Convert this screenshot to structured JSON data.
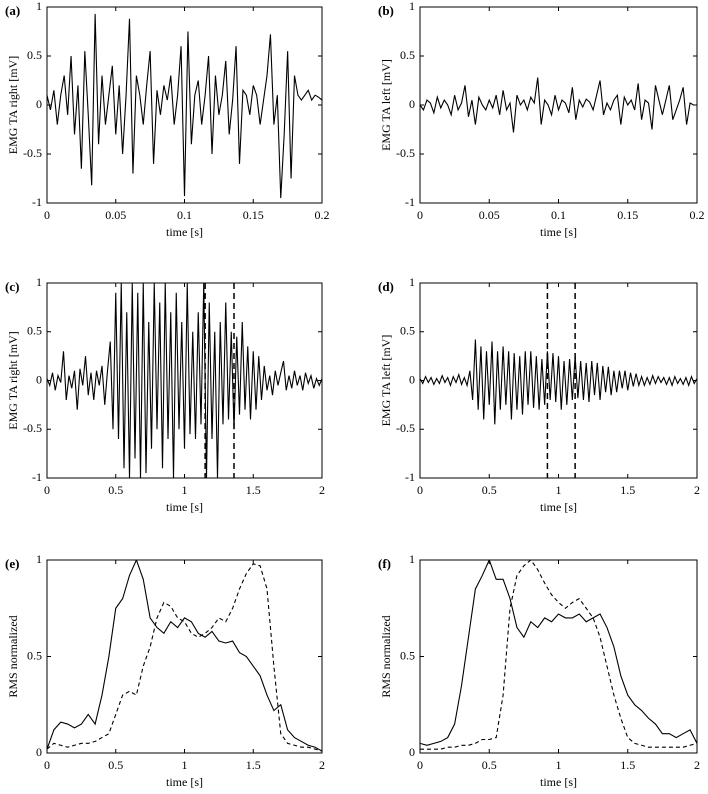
{
  "chart_data": [
    {
      "type": "line",
      "label": "(a)",
      "ylabel": "EMG TA right [mV]",
      "xlabel": "time [s]",
      "xlim": [
        0,
        0.2
      ],
      "xticks": [
        0,
        0.05,
        0.1,
        0.15,
        0.2
      ],
      "ylim": [
        -1,
        1
      ],
      "yticks": [
        -1,
        -0.5,
        0,
        0.5,
        1
      ],
      "x": [
        0,
        0.0025,
        0.005,
        0.0075,
        0.01,
        0.0125,
        0.015,
        0.0175,
        0.02,
        0.0225,
        0.025,
        0.0275,
        0.03,
        0.0325,
        0.035,
        0.0375,
        0.04,
        0.0425,
        0.045,
        0.0475,
        0.05,
        0.0525,
        0.055,
        0.0575,
        0.06,
        0.0625,
        0.065,
        0.0675,
        0.07,
        0.0725,
        0.075,
        0.0775,
        0.08,
        0.0825,
        0.085,
        0.0875,
        0.09,
        0.0925,
        0.095,
        0.0975,
        0.1,
        0.1025,
        0.105,
        0.1075,
        0.11,
        0.1125,
        0.115,
        0.1175,
        0.12,
        0.1225,
        0.125,
        0.1275,
        0.13,
        0.1325,
        0.135,
        0.1375,
        0.14,
        0.1425,
        0.145,
        0.1475,
        0.15,
        0.1525,
        0.155,
        0.1575,
        0.16,
        0.1625,
        0.165,
        0.1675,
        0.17,
        0.1725,
        0.175,
        0.1775,
        0.18,
        0.1825,
        0.185,
        0.1875,
        0.19,
        0.1925,
        0.195,
        0.1975,
        0.2
      ],
      "series": [
        {
          "color": "#000000",
          "dash": false,
          "values": [
            0.1,
            -0.05,
            0.15,
            -0.2,
            0.1,
            0.3,
            -0.1,
            0.5,
            -0.3,
            0.2,
            -0.65,
            0.55,
            -0.1,
            -0.82,
            0.93,
            -0.4,
            0.3,
            -0.2,
            0.1,
            0.4,
            -0.3,
            0.2,
            -0.5,
            0.1,
            0.88,
            -0.7,
            0.3,
            0.1,
            -0.2,
            0.2,
            0.55,
            -0.6,
            0.15,
            -0.1,
            0.2,
            0.05,
            0.3,
            -0.2,
            0.1,
            0.6,
            -0.93,
            0.75,
            -0.4,
            0.1,
            0.25,
            -0.2,
            0.1,
            0.5,
            -0.5,
            0.3,
            -0.1,
            0.1,
            0.45,
            -0.3,
            0.05,
            0.6,
            -0.6,
            0.15,
            0.1,
            -0.1,
            0.2,
            0.1,
            -0.2,
            0.05,
            0.3,
            0.72,
            -0.2,
            0.1,
            -0.95,
            -0.3,
            0.55,
            -0.75,
            0.3,
            0.1,
            0.05,
            0.1,
            0.15,
            0.05,
            0.1,
            0.08,
            0.05
          ]
        }
      ]
    },
    {
      "type": "line",
      "label": "(b)",
      "ylabel": "EMG TA left [mV]",
      "xlabel": "time [s]",
      "xlim": [
        0,
        0.2
      ],
      "xticks": [
        0,
        0.05,
        0.1,
        0.15,
        0.2
      ],
      "ylim": [
        -1,
        1
      ],
      "yticks": [
        -1,
        -0.5,
        0,
        0.5,
        1
      ],
      "x": [
        0,
        0.0025,
        0.005,
        0.0075,
        0.01,
        0.0125,
        0.015,
        0.0175,
        0.02,
        0.0225,
        0.025,
        0.0275,
        0.03,
        0.0325,
        0.035,
        0.0375,
        0.04,
        0.0425,
        0.045,
        0.0475,
        0.05,
        0.0525,
        0.055,
        0.0575,
        0.06,
        0.0625,
        0.065,
        0.0675,
        0.07,
        0.0725,
        0.075,
        0.0775,
        0.08,
        0.0825,
        0.085,
        0.0875,
        0.09,
        0.0925,
        0.095,
        0.0975,
        0.1,
        0.1025,
        0.105,
        0.1075,
        0.11,
        0.1125,
        0.115,
        0.1175,
        0.12,
        0.1225,
        0.125,
        0.1275,
        0.13,
        0.1325,
        0.135,
        0.1375,
        0.14,
        0.1425,
        0.145,
        0.1475,
        0.15,
        0.1525,
        0.155,
        0.1575,
        0.16,
        0.1625,
        0.165,
        0.1675,
        0.17,
        0.1725,
        0.175,
        0.1775,
        0.18,
        0.1825,
        0.185,
        0.1875,
        0.19,
        0.1925,
        0.195,
        0.1975,
        0.2
      ],
      "series": [
        {
          "color": "#000000",
          "dash": false,
          "values": [
            0,
            -0.05,
            0.05,
            0.02,
            -0.08,
            0.08,
            -0.03,
            0.05,
            0,
            -0.1,
            0.1,
            -0.05,
            0.02,
            0.2,
            -0.12,
            0.05,
            -0.2,
            0.08,
            0,
            -0.05,
            0.05,
            -0.03,
            0.1,
            -0.1,
            0.15,
            -0.05,
            0.02,
            -0.28,
            0.1,
            0,
            0.05,
            -0.05,
            0.08,
            0.02,
            0.28,
            -0.2,
            0.05,
            0,
            -0.1,
            0.1,
            -0.05,
            0.05,
            0.02,
            -0.08,
            0.18,
            -0.15,
            0.05,
            -0.02,
            0.06,
            0.03,
            -0.05,
            0.1,
            0.25,
            -0.1,
            0.02,
            -0.05,
            0.05,
            0.1,
            -0.2,
            0.08,
            0,
            0.05,
            -0.05,
            0.22,
            -0.15,
            0.05,
            0.02,
            -0.25,
            0.2,
            0.05,
            -0.1,
            0.05,
            0.2,
            -0.15,
            -0.05,
            0.05,
            0.18,
            -0.2,
            0.02,
            0,
            0
          ]
        }
      ]
    },
    {
      "type": "line",
      "label": "(c)",
      "ylabel": "EMG TA right [mV]",
      "xlabel": "time [s]",
      "xlim": [
        0,
        2
      ],
      "xticks": [
        0,
        0.5,
        1,
        1.5,
        2
      ],
      "ylim": [
        -1,
        1
      ],
      "yticks": [
        -1,
        -0.5,
        0,
        0.5,
        1
      ],
      "vlines": [
        1.15,
        1.36
      ],
      "x": [
        0,
        0.02,
        0.04,
        0.06,
        0.08,
        0.1,
        0.12,
        0.14,
        0.16,
        0.18,
        0.2,
        0.22,
        0.24,
        0.26,
        0.28,
        0.3,
        0.32,
        0.34,
        0.36,
        0.38,
        0.4,
        0.42,
        0.44,
        0.46,
        0.48,
        0.5,
        0.52,
        0.54,
        0.56,
        0.58,
        0.6,
        0.62,
        0.64,
        0.66,
        0.68,
        0.7,
        0.72,
        0.74,
        0.76,
        0.78,
        0.8,
        0.82,
        0.84,
        0.86,
        0.88,
        0.9,
        0.92,
        0.94,
        0.96,
        0.98,
        1,
        1.02,
        1.04,
        1.06,
        1.08,
        1.1,
        1.12,
        1.14,
        1.16,
        1.18,
        1.2,
        1.22,
        1.24,
        1.26,
        1.28,
        1.3,
        1.32,
        1.34,
        1.36,
        1.38,
        1.4,
        1.42,
        1.44,
        1.46,
        1.48,
        1.5,
        1.52,
        1.54,
        1.56,
        1.58,
        1.6,
        1.62,
        1.64,
        1.66,
        1.68,
        1.7,
        1.72,
        1.74,
        1.76,
        1.78,
        1.8,
        1.82,
        1.84,
        1.86,
        1.88,
        1.9,
        1.92,
        1.94,
        1.96,
        1.98,
        2
      ],
      "series": [
        {
          "color": "#000000",
          "dash": false,
          "values": [
            0.02,
            -0.05,
            0.08,
            -0.1,
            0.05,
            -0.02,
            0.3,
            -0.2,
            0.05,
            -0.08,
            0.1,
            -0.3,
            0.12,
            -0.05,
            0.25,
            -0.15,
            0.08,
            -0.2,
            0.1,
            -0.05,
            0.15,
            -0.25,
            0.1,
            0.4,
            -0.5,
            0.9,
            -0.6,
            1,
            -0.9,
            0.7,
            -1,
            1,
            -0.8,
            0.9,
            -1,
            1,
            -0.95,
            0.6,
            -0.7,
            1,
            -0.5,
            0.8,
            -0.9,
            1,
            -0.6,
            0.7,
            -1,
            0.9,
            -0.5,
            0.6,
            -0.7,
            1,
            -0.55,
            0.5,
            -0.6,
            0.7,
            -0.45,
            1,
            -1,
            0.8,
            -0.6,
            0.5,
            -1,
            0.6,
            -0.45,
            0.8,
            -0.4,
            0.5,
            -0.5,
            0.45,
            -0.35,
            0.6,
            -0.3,
            0.35,
            -0.4,
            0.3,
            -0.3,
            0.25,
            -0.2,
            0.15,
            -0.1,
            0.05,
            -0.15,
            0.1,
            -0.05,
            0.08,
            0.2,
            -0.1,
            0.05,
            -0.08,
            0.1,
            -0.05,
            0.05,
            -0.1,
            0.08,
            -0.03,
            0.05,
            -0.08,
            0.02,
            -0.05,
            0.02
          ]
        }
      ]
    },
    {
      "type": "line",
      "label": "(d)",
      "ylabel": "EMG TA left [mV]",
      "xlabel": "time [s]",
      "xlim": [
        0,
        2
      ],
      "xticks": [
        0,
        0.5,
        1,
        1.5,
        2
      ],
      "ylim": [
        -1,
        1
      ],
      "yticks": [
        -1,
        -0.5,
        0,
        0.5,
        1
      ],
      "vlines": [
        0.92,
        1.12
      ],
      "x": [
        0,
        0.02,
        0.04,
        0.06,
        0.08,
        0.1,
        0.12,
        0.14,
        0.16,
        0.18,
        0.2,
        0.22,
        0.24,
        0.26,
        0.28,
        0.3,
        0.32,
        0.34,
        0.36,
        0.38,
        0.4,
        0.42,
        0.44,
        0.46,
        0.48,
        0.5,
        0.52,
        0.54,
        0.56,
        0.58,
        0.6,
        0.62,
        0.64,
        0.66,
        0.68,
        0.7,
        0.72,
        0.74,
        0.76,
        0.78,
        0.8,
        0.82,
        0.84,
        0.86,
        0.88,
        0.9,
        0.92,
        0.94,
        0.96,
        0.98,
        1,
        1.02,
        1.04,
        1.06,
        1.08,
        1.1,
        1.12,
        1.14,
        1.16,
        1.18,
        1.2,
        1.22,
        1.24,
        1.26,
        1.28,
        1.3,
        1.32,
        1.34,
        1.36,
        1.38,
        1.4,
        1.42,
        1.44,
        1.46,
        1.48,
        1.5,
        1.52,
        1.54,
        1.56,
        1.58,
        1.6,
        1.62,
        1.64,
        1.66,
        1.68,
        1.7,
        1.72,
        1.74,
        1.76,
        1.78,
        1.8,
        1.82,
        1.84,
        1.86,
        1.88,
        1.9,
        1.92,
        1.94,
        1.96,
        1.98,
        2
      ],
      "series": [
        {
          "color": "#000000",
          "dash": false,
          "values": [
            0.02,
            -0.03,
            0.04,
            -0.02,
            0.03,
            -0.04,
            0.02,
            -0.03,
            0.05,
            -0.02,
            0.03,
            -0.05,
            0.04,
            -0.02,
            0.06,
            -0.04,
            0.03,
            -0.05,
            0.1,
            -0.2,
            0.42,
            -0.3,
            0.35,
            -0.4,
            0.3,
            -0.25,
            0.4,
            -0.45,
            0.3,
            -0.3,
            0.35,
            -0.25,
            0.3,
            -0.4,
            0.28,
            -0.3,
            0.25,
            -0.35,
            0.3,
            -0.25,
            0.3,
            -0.28,
            0.25,
            -0.3,
            0.22,
            -0.25,
            0.3,
            -0.2,
            0.28,
            -0.22,
            0.25,
            -0.3,
            0.2,
            -0.25,
            0.22,
            -0.2,
            0.25,
            -0.18,
            0.2,
            -0.2,
            0.18,
            -0.22,
            0.2,
            -0.15,
            0.18,
            -0.2,
            0.15,
            -0.12,
            0.14,
            -0.15,
            0.1,
            -0.12,
            0.1,
            -0.08,
            0.1,
            -0.1,
            0.08,
            -0.06,
            0.07,
            -0.05,
            0.04,
            -0.05,
            0.03,
            -0.04,
            0.05,
            -0.03,
            0.04,
            -0.02,
            0.03,
            -0.04,
            0.03,
            -0.05,
            0.04,
            -0.03,
            0.02,
            -0.04,
            0.03,
            -0.05,
            0.04,
            -0.03,
            0.02
          ]
        }
      ]
    },
    {
      "type": "line",
      "label": "(e)",
      "ylabel": "RMS normalized",
      "xlabel": "time [s]",
      "xlim": [
        0,
        2
      ],
      "xticks": [
        0,
        0.5,
        1,
        1.5,
        2
      ],
      "ylim": [
        0,
        1
      ],
      "yticks": [
        0,
        0.5,
        1
      ],
      "x": [
        0,
        0.05,
        0.1,
        0.15,
        0.2,
        0.25,
        0.3,
        0.35,
        0.4,
        0.45,
        0.5,
        0.55,
        0.6,
        0.65,
        0.7,
        0.75,
        0.8,
        0.85,
        0.9,
        0.95,
        1,
        1.05,
        1.1,
        1.15,
        1.2,
        1.25,
        1.3,
        1.35,
        1.4,
        1.45,
        1.5,
        1.55,
        1.6,
        1.65,
        1.7,
        1.75,
        1.8,
        1.85,
        1.9,
        1.95,
        2
      ],
      "series": [
        {
          "color": "#000000",
          "dash": false,
          "values": [
            0.02,
            0.12,
            0.16,
            0.15,
            0.13,
            0.15,
            0.2,
            0.15,
            0.3,
            0.5,
            0.75,
            0.8,
            0.92,
            1,
            0.9,
            0.7,
            0.65,
            0.62,
            0.68,
            0.65,
            0.7,
            0.68,
            0.62,
            0.6,
            0.63,
            0.58,
            0.57,
            0.58,
            0.52,
            0.5,
            0.45,
            0.4,
            0.3,
            0.22,
            0.25,
            0.12,
            0.08,
            0.06,
            0.04,
            0.03,
            0.01
          ]
        },
        {
          "color": "#000000",
          "dash": true,
          "values": [
            0.02,
            0.05,
            0.04,
            0.03,
            0.04,
            0.05,
            0.05,
            0.06,
            0.08,
            0.1,
            0.2,
            0.3,
            0.32,
            0.3,
            0.45,
            0.55,
            0.7,
            0.78,
            0.76,
            0.7,
            0.68,
            0.62,
            0.6,
            0.62,
            0.65,
            0.7,
            0.68,
            0.75,
            0.85,
            0.93,
            0.98,
            0.97,
            0.85,
            0.45,
            0.1,
            0.05,
            0.04,
            0.03,
            0.03,
            0.02,
            0.01
          ]
        }
      ]
    },
    {
      "type": "line",
      "label": "(f)",
      "ylabel": "RMS normalized",
      "xlabel": "time [s]",
      "xlim": [
        0,
        2
      ],
      "xticks": [
        0,
        0.5,
        1,
        1.5,
        2
      ],
      "ylim": [
        0,
        1
      ],
      "yticks": [
        0,
        0.5,
        1
      ],
      "x": [
        0,
        0.05,
        0.1,
        0.15,
        0.2,
        0.25,
        0.3,
        0.35,
        0.4,
        0.45,
        0.5,
        0.55,
        0.6,
        0.65,
        0.7,
        0.75,
        0.8,
        0.85,
        0.9,
        0.95,
        1,
        1.05,
        1.1,
        1.15,
        1.2,
        1.25,
        1.3,
        1.35,
        1.4,
        1.45,
        1.5,
        1.55,
        1.6,
        1.65,
        1.7,
        1.75,
        1.8,
        1.85,
        1.9,
        1.95,
        2
      ],
      "series": [
        {
          "color": "#000000",
          "dash": false,
          "values": [
            0.05,
            0.04,
            0.05,
            0.06,
            0.08,
            0.15,
            0.35,
            0.6,
            0.85,
            0.92,
            1,
            0.9,
            0.9,
            0.8,
            0.65,
            0.6,
            0.68,
            0.65,
            0.7,
            0.68,
            0.72,
            0.7,
            0.7,
            0.72,
            0.68,
            0.7,
            0.72,
            0.65,
            0.55,
            0.4,
            0.3,
            0.25,
            0.22,
            0.18,
            0.15,
            0.1,
            0.1,
            0.08,
            0.1,
            0.12,
            0.05
          ]
        },
        {
          "color": "#000000",
          "dash": true,
          "values": [
            0.02,
            0.02,
            0.02,
            0.02,
            0.03,
            0.03,
            0.04,
            0.04,
            0.05,
            0.07,
            0.07,
            0.08,
            0.3,
            0.75,
            0.92,
            0.97,
            1,
            0.95,
            0.88,
            0.82,
            0.78,
            0.75,
            0.78,
            0.8,
            0.75,
            0.7,
            0.6,
            0.45,
            0.3,
            0.18,
            0.08,
            0.05,
            0.04,
            0.03,
            0.03,
            0.03,
            0.03,
            0.03,
            0.03,
            0.04,
            0.05
          ]
        }
      ]
    }
  ]
}
